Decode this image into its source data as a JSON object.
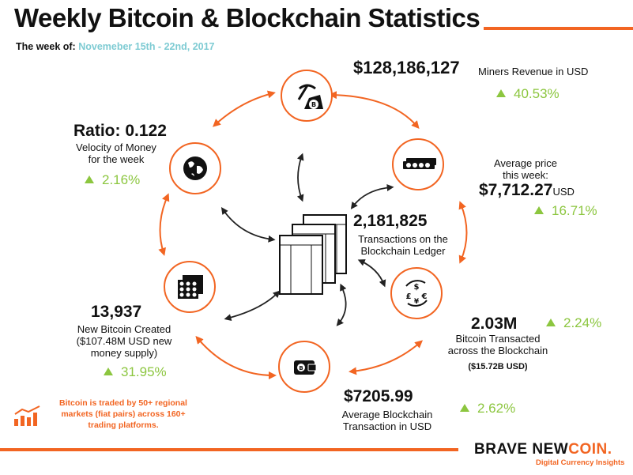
{
  "title": "Weekly Bitcoin & Blockchain Statistics",
  "week_label": "The week of:",
  "week_dates": "Novemeber 15th - 22nd, 2017",
  "stats": {
    "miners_revenue": {
      "value": "$128,186,127",
      "label": "Miners Revenue in USD",
      "change": "40.53%",
      "icon": "pickaxe-bitcoin-icon"
    },
    "average_price": {
      "label_line1": "Average price",
      "label_line2": "this week:",
      "value": "$7,712.27",
      "unit": "USD",
      "change": "16.71%",
      "icon": "banknotes-icon"
    },
    "transactions": {
      "value": "2,181,825",
      "label_line1": "Transactions on the",
      "label_line2": "Blockchain Ledger",
      "icon": "ledger-icon"
    },
    "bitcoin_transacted": {
      "value": "2.03M",
      "change": "2.24%",
      "label_line1": "Bitcoin Transacted",
      "label_line2": "across the Blockchain",
      "sub": "($15.72B USD)",
      "icon": "currency-exchange-icon"
    },
    "avg_transaction": {
      "value": "$7205.99",
      "label_line1": "Average Blockchain",
      "label_line2": "Transaction in USD",
      "change": "2.62%",
      "icon": "wallet-icon"
    },
    "new_bitcoin": {
      "value": "13,937",
      "label_line1": "New Bitcoin Created",
      "label_line2": "($107.48M USD new",
      "label_line3": "money supply)",
      "change": "31.95%",
      "icon": "coin-stacks-icon"
    },
    "velocity": {
      "value": "Ratio: 0.122",
      "label_line1": "Velocity of Money",
      "label_line2": "for the week",
      "change": "2.16%",
      "icon": "globe-icon"
    }
  },
  "note": "Bitcoin is traded by 50+ regional markets (fiat pairs) across 160+ trading platforms.",
  "brand": {
    "name_part1": "BRAVE NEW",
    "name_part2": "COIN.",
    "tagline": "Digital Currency Insights"
  },
  "colors": {
    "accent": "#f26522",
    "up": "#8cc63f",
    "dates": "#7ecbd3",
    "text": "#111111"
  }
}
